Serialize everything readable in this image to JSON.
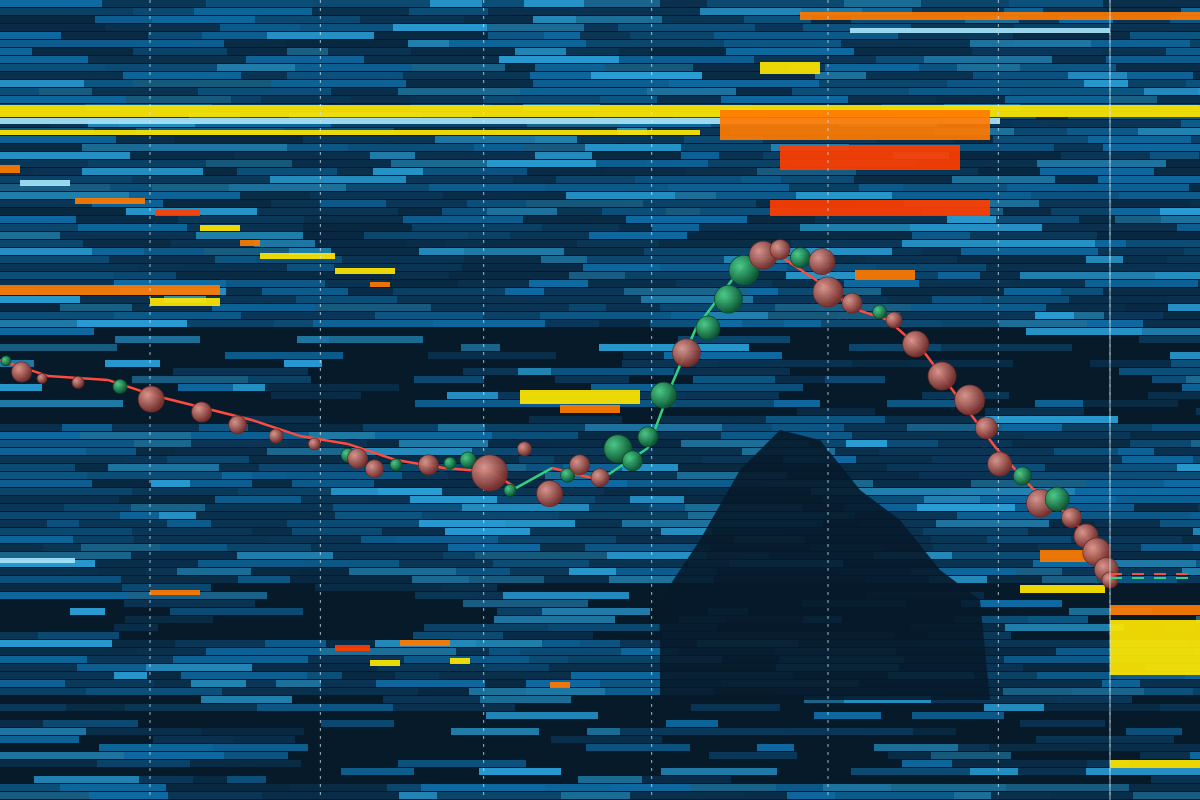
{
  "colors": {
    "background": "#071a2a",
    "deep": "#0b3a5c",
    "mid": "#0f6fa8",
    "light": "#2aa3dc",
    "pale": "#a7e4f7",
    "yellow": "#ffe600",
    "orange": "#ff7a00",
    "red": "#ff3d00",
    "buy_bubble": "#1f8a55",
    "sell_bubble": "#b25c58",
    "price_up": "#35d07f",
    "price_down": "#ff4a3d",
    "time_marker": "#cfe6f0"
  },
  "chart_data": {
    "type": "heatmap",
    "title": "",
    "xlabel": "",
    "ylabel": "",
    "xlim": [
      0,
      1
    ],
    "ylim": [
      0,
      1
    ],
    "grid": true,
    "time_markers": [
      0.125,
      0.267,
      0.403,
      0.543,
      0.69,
      0.832,
      0.925
    ],
    "price_path": [
      [
        0.0,
        0.55
      ],
      [
        0.04,
        0.53
      ],
      [
        0.09,
        0.525
      ],
      [
        0.13,
        0.505
      ],
      [
        0.17,
        0.49
      ],
      [
        0.21,
        0.475
      ],
      [
        0.25,
        0.455
      ],
      [
        0.29,
        0.445
      ],
      [
        0.33,
        0.425
      ],
      [
        0.37,
        0.415
      ],
      [
        0.41,
        0.41
      ],
      [
        0.43,
        0.39
      ],
      [
        0.46,
        0.415
      ],
      [
        0.5,
        0.4
      ],
      [
        0.52,
        0.42
      ],
      [
        0.54,
        0.44
      ],
      [
        0.56,
        0.52
      ],
      [
        0.58,
        0.59
      ],
      [
        0.6,
        0.63
      ],
      [
        0.62,
        0.67
      ],
      [
        0.65,
        0.68
      ],
      [
        0.67,
        0.66
      ],
      [
        0.69,
        0.64
      ],
      [
        0.71,
        0.615
      ],
      [
        0.74,
        0.6
      ],
      [
        0.77,
        0.56
      ],
      [
        0.79,
        0.52
      ],
      [
        0.81,
        0.48
      ],
      [
        0.83,
        0.44
      ],
      [
        0.86,
        0.39
      ],
      [
        0.88,
        0.37
      ],
      [
        0.9,
        0.34
      ],
      [
        0.92,
        0.3
      ],
      [
        0.93,
        0.27
      ]
    ],
    "bubbles": [
      {
        "x": 0.005,
        "y": 0.549,
        "size": 5,
        "side": "buy"
      },
      {
        "x": 0.018,
        "y": 0.535,
        "size": 10,
        "side": "sell"
      },
      {
        "x": 0.035,
        "y": 0.527,
        "size": 5,
        "side": "sell"
      },
      {
        "x": 0.065,
        "y": 0.522,
        "size": 6,
        "side": "sell"
      },
      {
        "x": 0.1,
        "y": 0.517,
        "size": 7,
        "side": "buy"
      },
      {
        "x": 0.126,
        "y": 0.501,
        "size": 13,
        "side": "sell"
      },
      {
        "x": 0.168,
        "y": 0.485,
        "size": 10,
        "side": "sell"
      },
      {
        "x": 0.198,
        "y": 0.469,
        "size": 9,
        "side": "sell"
      },
      {
        "x": 0.23,
        "y": 0.455,
        "size": 7,
        "side": "sell"
      },
      {
        "x": 0.262,
        "y": 0.445,
        "size": 6,
        "side": "sell"
      },
      {
        "x": 0.29,
        "y": 0.431,
        "size": 7,
        "side": "buy"
      },
      {
        "x": 0.298,
        "y": 0.427,
        "size": 10,
        "side": "sell"
      },
      {
        "x": 0.312,
        "y": 0.414,
        "size": 9,
        "side": "sell"
      },
      {
        "x": 0.33,
        "y": 0.419,
        "size": 6,
        "side": "buy"
      },
      {
        "x": 0.357,
        "y": 0.419,
        "size": 10,
        "side": "sell"
      },
      {
        "x": 0.375,
        "y": 0.421,
        "size": 6,
        "side": "buy"
      },
      {
        "x": 0.39,
        "y": 0.425,
        "size": 8,
        "side": "buy"
      },
      {
        "x": 0.408,
        "y": 0.409,
        "size": 18,
        "side": "sell"
      },
      {
        "x": 0.425,
        "y": 0.387,
        "size": 6,
        "side": "buy"
      },
      {
        "x": 0.437,
        "y": 0.439,
        "size": 7,
        "side": "sell"
      },
      {
        "x": 0.458,
        "y": 0.383,
        "size": 13,
        "side": "sell"
      },
      {
        "x": 0.473,
        "y": 0.406,
        "size": 7,
        "side": "buy"
      },
      {
        "x": 0.483,
        "y": 0.419,
        "size": 10,
        "side": "sell"
      },
      {
        "x": 0.5,
        "y": 0.403,
        "size": 9,
        "side": "sell"
      },
      {
        "x": 0.515,
        "y": 0.439,
        "size": 14,
        "side": "buy"
      },
      {
        "x": 0.527,
        "y": 0.424,
        "size": 10,
        "side": "buy"
      },
      {
        "x": 0.54,
        "y": 0.454,
        "size": 10,
        "side": "buy"
      },
      {
        "x": 0.553,
        "y": 0.506,
        "size": 13,
        "side": "buy"
      },
      {
        "x": 0.572,
        "y": 0.559,
        "size": 14,
        "side": "sell"
      },
      {
        "x": 0.59,
        "y": 0.59,
        "size": 12,
        "side": "buy"
      },
      {
        "x": 0.607,
        "y": 0.626,
        "size": 14,
        "side": "buy"
      },
      {
        "x": 0.62,
        "y": 0.662,
        "size": 15,
        "side": "buy"
      },
      {
        "x": 0.636,
        "y": 0.681,
        "size": 14,
        "side": "sell"
      },
      {
        "x": 0.65,
        "y": 0.688,
        "size": 10,
        "side": "sell"
      },
      {
        "x": 0.667,
        "y": 0.678,
        "size": 10,
        "side": "buy"
      },
      {
        "x": 0.685,
        "y": 0.673,
        "size": 13,
        "side": "sell"
      },
      {
        "x": 0.69,
        "y": 0.635,
        "size": 15,
        "side": "sell"
      },
      {
        "x": 0.71,
        "y": 0.621,
        "size": 10,
        "side": "sell"
      },
      {
        "x": 0.733,
        "y": 0.61,
        "size": 7,
        "side": "buy"
      },
      {
        "x": 0.745,
        "y": 0.6,
        "size": 8,
        "side": "sell"
      },
      {
        "x": 0.763,
        "y": 0.57,
        "size": 13,
        "side": "sell"
      },
      {
        "x": 0.785,
        "y": 0.53,
        "size": 14,
        "side": "sell"
      },
      {
        "x": 0.808,
        "y": 0.5,
        "size": 15,
        "side": "sell"
      },
      {
        "x": 0.822,
        "y": 0.465,
        "size": 11,
        "side": "sell"
      },
      {
        "x": 0.833,
        "y": 0.42,
        "size": 12,
        "side": "sell"
      },
      {
        "x": 0.852,
        "y": 0.405,
        "size": 9,
        "side": "buy"
      },
      {
        "x": 0.867,
        "y": 0.371,
        "size": 14,
        "side": "sell"
      },
      {
        "x": 0.881,
        "y": 0.376,
        "size": 12,
        "side": "buy"
      },
      {
        "x": 0.893,
        "y": 0.353,
        "size": 10,
        "side": "sell"
      },
      {
        "x": 0.905,
        "y": 0.33,
        "size": 12,
        "side": "sell"
      },
      {
        "x": 0.914,
        "y": 0.31,
        "size": 14,
        "side": "sell"
      },
      {
        "x": 0.922,
        "y": 0.288,
        "size": 12,
        "side": "sell"
      },
      {
        "x": 0.925,
        "y": 0.275,
        "size": 8,
        "side": "sell"
      }
    ],
    "last_price": 0.28
  }
}
